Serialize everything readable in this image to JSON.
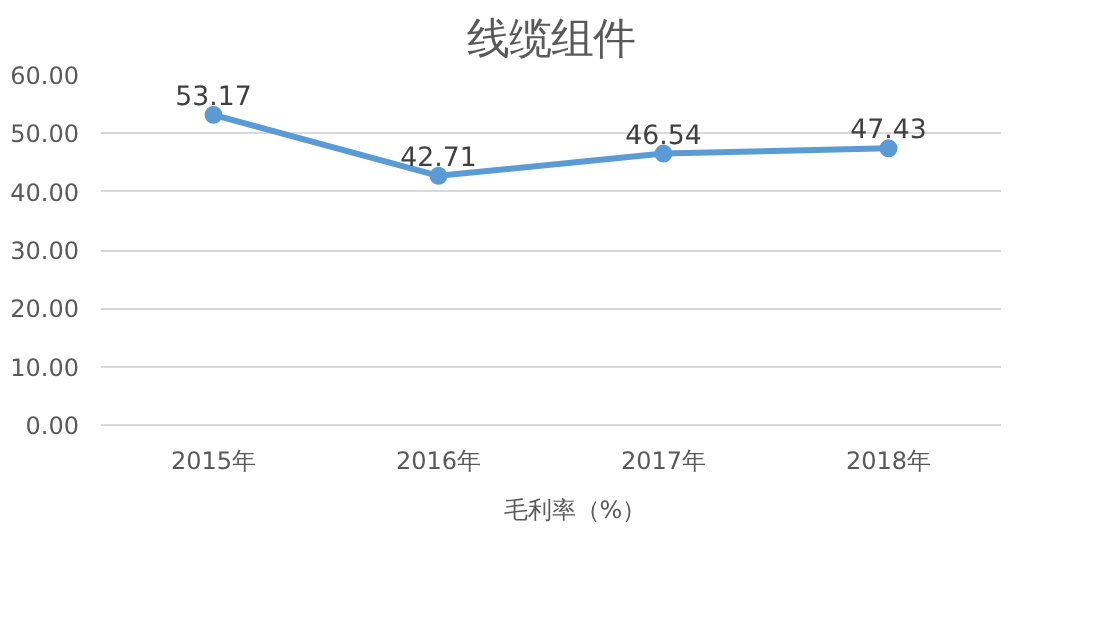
{
  "chart_data": {
    "type": "line",
    "title": "线缆组件",
    "categories": [
      "2015年",
      "2016年",
      "2017年",
      "2018年"
    ],
    "series": [
      {
        "name": "毛利率（%）",
        "color": "#5b9bd5",
        "values": [
          53.17,
          42.71,
          46.54,
          47.43
        ]
      }
    ],
    "ylim": [
      0,
      60
    ],
    "yticks": [
      {
        "value": 0,
        "label": "0.00"
      },
      {
        "value": 10,
        "label": "10.00"
      },
      {
        "value": 20,
        "label": "20.00"
      },
      {
        "value": 30,
        "label": "30.00"
      },
      {
        "value": 40,
        "label": "40.00"
      },
      {
        "value": 50,
        "label": "50.00"
      },
      {
        "value": 60,
        "label": "60.00"
      }
    ],
    "grid": "y",
    "legend": "bottom",
    "marker": "circle",
    "data_labels": true,
    "line_style": "solid"
  }
}
